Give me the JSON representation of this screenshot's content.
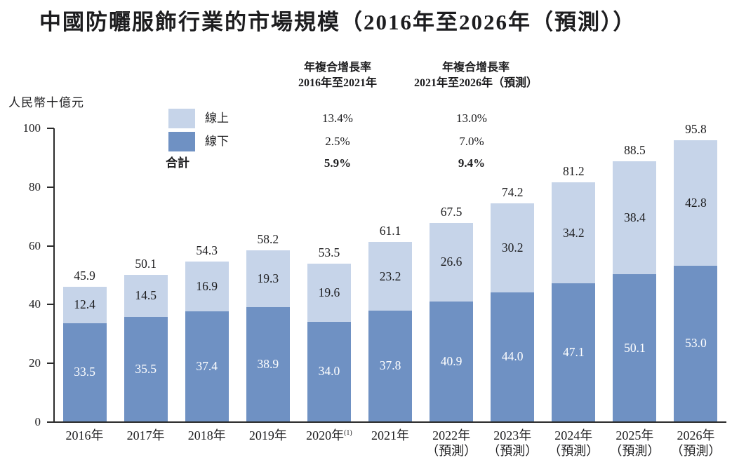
{
  "title": "中國防曬服飾行業的市場規模（2016年至2026年（預測））",
  "y_axis_label": "人民幣十億元",
  "colors": {
    "online": "#c6d4e9",
    "offline": "#6f91c3",
    "axis": "#2b2b2b"
  },
  "cagr_table": {
    "col1_header_line1": "年複合增長率",
    "col1_header_line2": "2016年至2021年",
    "col2_header_line1": "年複合增長率",
    "col2_header_line2": "2021年至2026年（預測）",
    "rows": [
      {
        "label": "線上",
        "col1": "13.4%",
        "col2": "13.0%"
      },
      {
        "label": "線下",
        "col1": "2.5%",
        "col2": "7.0%"
      },
      {
        "label": "合計",
        "col1": "5.9%",
        "col2": "9.4%"
      }
    ]
  },
  "chart_data": {
    "type": "bar",
    "stacked": true,
    "title": "中國防曬服飾行業的市場規模（2016年至2026年（預測））",
    "ylabel": "人民幣十億元",
    "ylim": [
      0,
      100
    ],
    "yticks": [
      0,
      20,
      40,
      60,
      80,
      100
    ],
    "grid": false,
    "legend_position": "top-left",
    "categories": [
      {
        "label": "2016年"
      },
      {
        "label": "2017年"
      },
      {
        "label": "2018年"
      },
      {
        "label": "2019年"
      },
      {
        "label": "2020年",
        "superscript": "(1)"
      },
      {
        "label": "2021年"
      },
      {
        "label": "2022年",
        "sub_label": "（預測）"
      },
      {
        "label": "2023年",
        "sub_label": "（預測）"
      },
      {
        "label": "2024年",
        "sub_label": "（預測）"
      },
      {
        "label": "2025年",
        "sub_label": "（預測）"
      },
      {
        "label": "2026年",
        "sub_label": "（預測）"
      }
    ],
    "series": [
      {
        "name": "線上",
        "key": "online",
        "values": [
          12.4,
          14.5,
          16.9,
          19.3,
          19.6,
          23.2,
          26.6,
          30.2,
          34.2,
          38.4,
          42.8
        ]
      },
      {
        "name": "線下",
        "key": "offline",
        "values": [
          33.5,
          35.5,
          37.4,
          38.9,
          34.0,
          37.8,
          40.9,
          44.0,
          47.1,
          50.1,
          53.0
        ]
      }
    ],
    "totals": [
      45.9,
      50.1,
      54.3,
      58.2,
      53.5,
      61.1,
      67.5,
      74.2,
      81.2,
      88.5,
      95.8
    ]
  }
}
